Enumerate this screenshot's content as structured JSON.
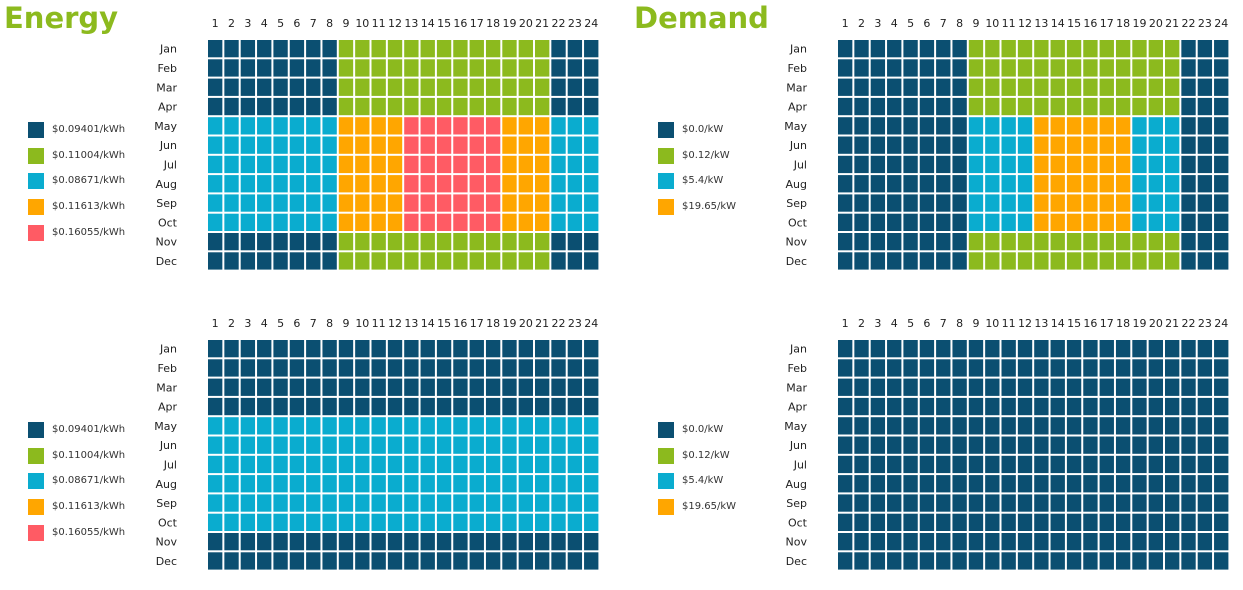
{
  "titles": {
    "energy": "Energy",
    "demand": "Demand"
  },
  "colors": {
    "navy": "#0b4f71",
    "green": "#8cba1e",
    "cyan": "#0aaccf",
    "orange": "#ffa600",
    "red": "#ff5b64"
  },
  "chart_data": [
    {
      "type": "heatmap",
      "title": "Energy",
      "x": [
        "1",
        "2",
        "3",
        "4",
        "5",
        "6",
        "7",
        "8",
        "9",
        "10",
        "11",
        "12",
        "13",
        "14",
        "15",
        "16",
        "17",
        "18",
        "19",
        "20",
        "21",
        "22",
        "23",
        "24"
      ],
      "y": [
        "Jan",
        "Feb",
        "Mar",
        "Apr",
        "May",
        "Jun",
        "Jul",
        "Aug",
        "Sep",
        "Oct",
        "Nov",
        "Dec"
      ],
      "legend": [
        {
          "label": "$0.09401/kWh",
          "color": "#0b4f71"
        },
        {
          "label": "$0.11004/kWh",
          "color": "#8cba1e"
        },
        {
          "label": "$0.08671/kWh",
          "color": "#0aaccf"
        },
        {
          "label": "$0.11613/kWh",
          "color": "#ffa600"
        },
        {
          "label": "$0.16055/kWh",
          "color": "#ff5b64"
        }
      ],
      "rows": [
        "000000001111111111111000",
        "000000001111111111111000",
        "000000001111111111111000",
        "000000001111111111111000",
        "222222223333444444333222",
        "222222223333444444333222",
        "222222223333444444333222",
        "222222223333444444333222",
        "222222223333444444333222",
        "222222223333444444333222",
        "000000001111111111111000",
        "000000001111111111111000"
      ]
    },
    {
      "type": "heatmap",
      "title": "Demand",
      "x": [
        "1",
        "2",
        "3",
        "4",
        "5",
        "6",
        "7",
        "8",
        "9",
        "10",
        "11",
        "12",
        "13",
        "14",
        "15",
        "16",
        "17",
        "18",
        "19",
        "20",
        "21",
        "22",
        "23",
        "24"
      ],
      "y": [
        "Jan",
        "Feb",
        "Mar",
        "Apr",
        "May",
        "Jun",
        "Jul",
        "Aug",
        "Sep",
        "Oct",
        "Nov",
        "Dec"
      ],
      "legend": [
        {
          "label": "$0.0/kW",
          "color": "#0b4f71"
        },
        {
          "label": "$0.12/kW",
          "color": "#8cba1e"
        },
        {
          "label": "$5.4/kW",
          "color": "#0aaccf"
        },
        {
          "label": "$19.65/kW",
          "color": "#ffa600"
        }
      ],
      "rows": [
        "000000001111111111111000",
        "000000001111111111111000",
        "000000001111111111111000",
        "000000001111111111111000",
        "000000002222333333222000",
        "000000002222333333222000",
        "000000002222333333222000",
        "000000002222333333222000",
        "000000002222333333222000",
        "000000002222333333222000",
        "000000001111111111111000",
        "000000001111111111111000"
      ]
    },
    {
      "type": "heatmap",
      "title": "",
      "x": [
        "1",
        "2",
        "3",
        "4",
        "5",
        "6",
        "7",
        "8",
        "9",
        "10",
        "11",
        "12",
        "13",
        "14",
        "15",
        "16",
        "17",
        "18",
        "19",
        "20",
        "21",
        "22",
        "23",
        "24"
      ],
      "y": [
        "Jan",
        "Feb",
        "Mar",
        "Apr",
        "May",
        "Jun",
        "Jul",
        "Aug",
        "Sep",
        "Oct",
        "Nov",
        "Dec"
      ],
      "legend": [
        {
          "label": "$0.09401/kWh",
          "color": "#0b4f71"
        },
        {
          "label": "$0.11004/kWh",
          "color": "#8cba1e"
        },
        {
          "label": "$0.08671/kWh",
          "color": "#0aaccf"
        },
        {
          "label": "$0.11613/kWh",
          "color": "#ffa600"
        },
        {
          "label": "$0.16055/kWh",
          "color": "#ff5b64"
        }
      ],
      "rows": [
        "000000000000000000000000",
        "000000000000000000000000",
        "000000000000000000000000",
        "000000000000000000000000",
        "222222222222222222222222",
        "222222222222222222222222",
        "222222222222222222222222",
        "222222222222222222222222",
        "222222222222222222222222",
        "222222222222222222222222",
        "000000000000000000000000",
        "000000000000000000000000"
      ]
    },
    {
      "type": "heatmap",
      "title": "",
      "x": [
        "1",
        "2",
        "3",
        "4",
        "5",
        "6",
        "7",
        "8",
        "9",
        "10",
        "11",
        "12",
        "13",
        "14",
        "15",
        "16",
        "17",
        "18",
        "19",
        "20",
        "21",
        "22",
        "23",
        "24"
      ],
      "y": [
        "Jan",
        "Feb",
        "Mar",
        "Apr",
        "May",
        "Jun",
        "Jul",
        "Aug",
        "Sep",
        "Oct",
        "Nov",
        "Dec"
      ],
      "legend": [
        {
          "label": "$0.0/kW",
          "color": "#0b4f71"
        },
        {
          "label": "$0.12/kW",
          "color": "#8cba1e"
        },
        {
          "label": "$5.4/kW",
          "color": "#0aaccf"
        },
        {
          "label": "$19.65/kW",
          "color": "#ffa600"
        }
      ],
      "rows": [
        "000000000000000000000000",
        "000000000000000000000000",
        "000000000000000000000000",
        "000000000000000000000000",
        "000000000000000000000000",
        "000000000000000000000000",
        "000000000000000000000000",
        "000000000000000000000000",
        "000000000000000000000000",
        "000000000000000000000000",
        "000000000000000000000000",
        "000000000000000000000000"
      ]
    }
  ]
}
